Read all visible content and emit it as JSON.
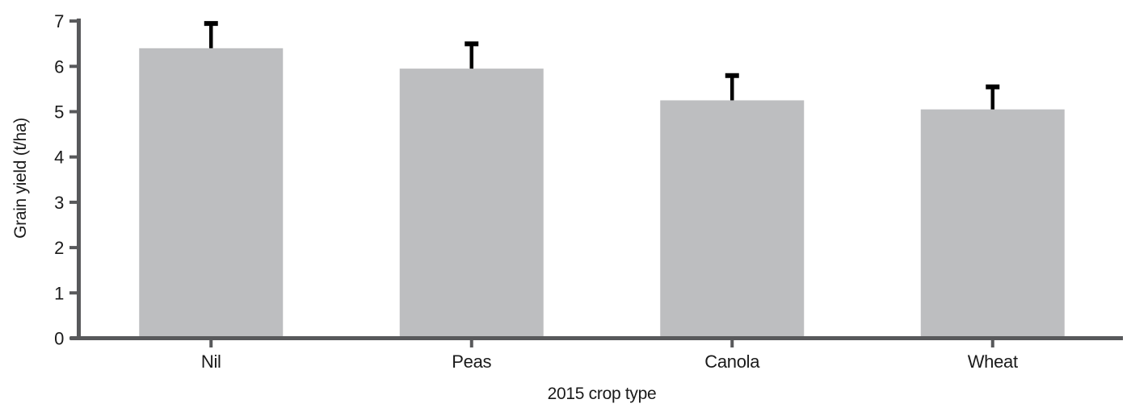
{
  "chart_data": {
    "type": "bar",
    "title": "",
    "categories": [
      "Nil",
      "Peas",
      "Canola",
      "Wheat"
    ],
    "values": [
      6.4,
      5.95,
      5.25,
      5.05
    ],
    "error_upper": [
      0.6,
      0.6,
      0.6,
      0.55
    ],
    "xlabel": "2015 crop type",
    "ylabel": "Grain yield (t/ha)",
    "ylim": [
      0,
      7
    ],
    "yticks": [
      0,
      1,
      2,
      3,
      4,
      5,
      6,
      7
    ],
    "grid": false,
    "legend": "none",
    "bar_orientation": "vertical",
    "colors": {
      "bar_fill": "#bdbec0",
      "axis": "#58595b",
      "error_bar": "#000000",
      "text": "#1a1a1a"
    }
  }
}
